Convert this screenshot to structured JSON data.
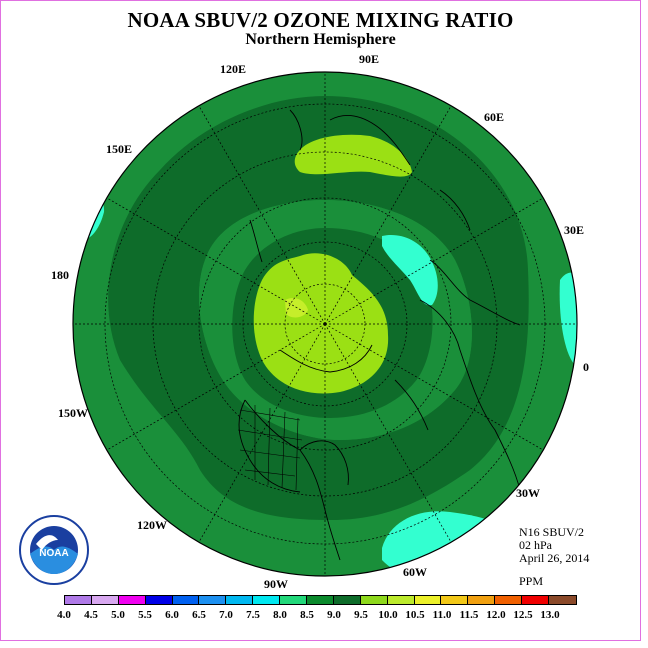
{
  "header": {
    "title": "NOAA SBUV/2 OZONE MIXING RATIO",
    "subtitle": "Northern Hemisphere"
  },
  "map": {
    "projection": "north-polar-stereographic",
    "longitude_labels": [
      "90E",
      "60E",
      "30E",
      "0",
      "30W",
      "60W",
      "90W",
      "120W",
      "150W",
      "180",
      "150E",
      "120E"
    ],
    "colors": {
      "band_7_5_8_0": "#33ffd0",
      "band_8_0_8_5": "#1a8f3a",
      "band_8_5_9_0": "#0e6c2a",
      "band_9_0_9_5": "#9be014",
      "band_9_5_10_0": "#c6ee2a"
    }
  },
  "info": {
    "instrument": "N16 SBUV/2",
    "level": "02 hPa",
    "date": "April 26, 2014",
    "unit": "PPM"
  },
  "colorbar": {
    "ticks": [
      "4.0",
      "4.5",
      "5.0",
      "5.5",
      "6.0",
      "6.5",
      "7.0",
      "7.5",
      "8.0",
      "8.5",
      "9.0",
      "9.5",
      "10.0",
      "10.5",
      "11.0",
      "11.5",
      "12.0",
      "12.5",
      "13.0"
    ],
    "colors": [
      "#b07ae8",
      "#d8a8f0",
      "#f000f0",
      "#0000e8",
      "#0060f0",
      "#1c90f0",
      "#00b8f0",
      "#00e8f0",
      "#22d87a",
      "#0b8a2c",
      "#0e6c2a",
      "#8ed81c",
      "#bcea2c",
      "#ecf02a",
      "#f2c818",
      "#f0a010",
      "#f06000",
      "#f00000",
      "#8b4a2a"
    ]
  },
  "logo": {
    "text": "NOAA"
  }
}
